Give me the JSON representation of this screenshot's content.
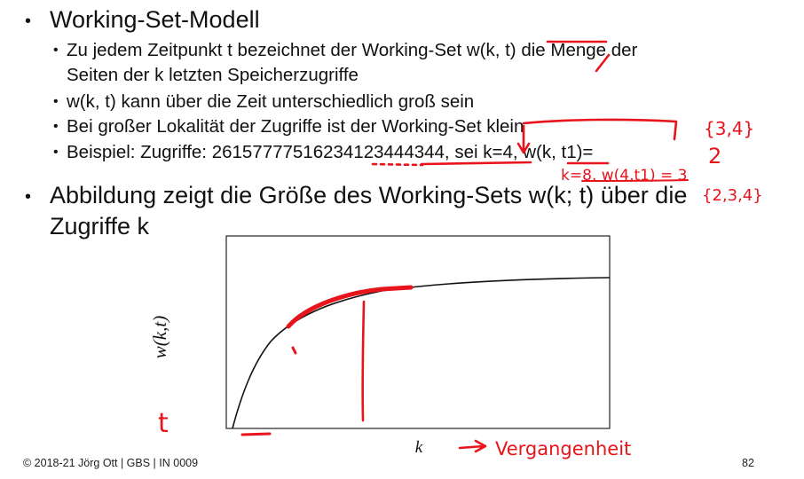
{
  "slide": {
    "bullet1": "Working-Set-Modell",
    "sub1_line1": "Zu jedem Zeitpunkt t bezeichnet der Working-Set w(k, t) die Menge der",
    "sub1_line2": "Seiten der k letzten Speicherzugriffe",
    "sub2": "w(k, t) kann über die Zeit unterschiedlich groß sein",
    "sub3": "Bei großer Lokalität der Zugriffe ist der Working-Set klein",
    "sub4": "Beispiel: Zugriffe: 26157777516234123444344, sei k=4, w(k, t1)=",
    "bullet2_line1": "Abbildung zeigt die Größe des Working-Sets w(k; t) über die",
    "bullet2_line2": "Zugriffe k",
    "ylabel": "w(k,t)",
    "xlabel": "k"
  },
  "annotations": {
    "set1": "{3,4}",
    "answer": "2",
    "line2": "k=8, w(4,t1) = 3",
    "set2": "{2,3,4}",
    "t_label": "t",
    "vergangenheit": "Vergangenheit"
  },
  "footer": {
    "left": "© 2018-21 Jörg Ott | GBS | IN 0009",
    "page": "82"
  },
  "colors": {
    "ink": "#e8141c",
    "text": "#111111"
  }
}
